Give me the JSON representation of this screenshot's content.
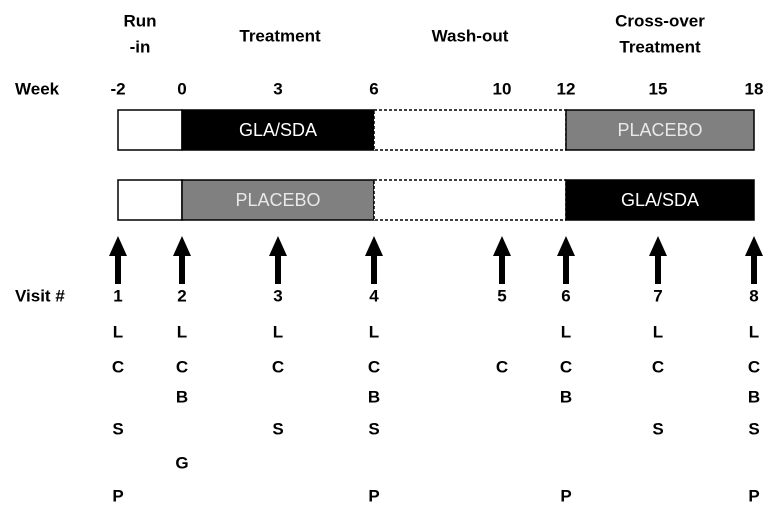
{
  "phases": [
    {
      "lines": [
        "Run",
        "-in"
      ]
    },
    {
      "lines": [
        "Treatment"
      ]
    },
    {
      "lines": [
        "Wash-out"
      ]
    },
    {
      "lines": [
        "Cross-over",
        "Treatment"
      ]
    }
  ],
  "weeks": {
    "label": "Week",
    "ticks": [
      "-2",
      "0",
      "3",
      "6",
      "10",
      "12",
      "15",
      "18"
    ]
  },
  "arms": [
    {
      "treatment": {
        "text": "GLA/SDA",
        "color": "#000000"
      },
      "crossover": {
        "text": "PLACEBO",
        "color": "#808080"
      }
    },
    {
      "treatment": {
        "text": "PLACEBO",
        "color": "#808080"
      },
      "crossover": {
        "text": "GLA/SDA",
        "color": "#000000"
      }
    }
  ],
  "visits": {
    "label": "Visit #",
    "numbers": [
      "1",
      "2",
      "3",
      "4",
      "5",
      "6",
      "7",
      "8"
    ]
  },
  "code_rows": [
    [
      "L",
      "L",
      "L",
      "L",
      null,
      "L",
      "L",
      "L"
    ],
    [
      "C",
      "C",
      "C",
      "C",
      "C",
      "C",
      "C",
      "C"
    ],
    [
      null,
      "B",
      null,
      "B",
      null,
      "B",
      null,
      "B"
    ],
    [
      "S",
      null,
      "S",
      "S",
      null,
      null,
      "S",
      "S"
    ],
    [
      null,
      "G",
      null,
      null,
      null,
      null,
      null,
      null
    ],
    [
      "P",
      null,
      null,
      "P",
      null,
      "P",
      null,
      "P"
    ]
  ]
}
